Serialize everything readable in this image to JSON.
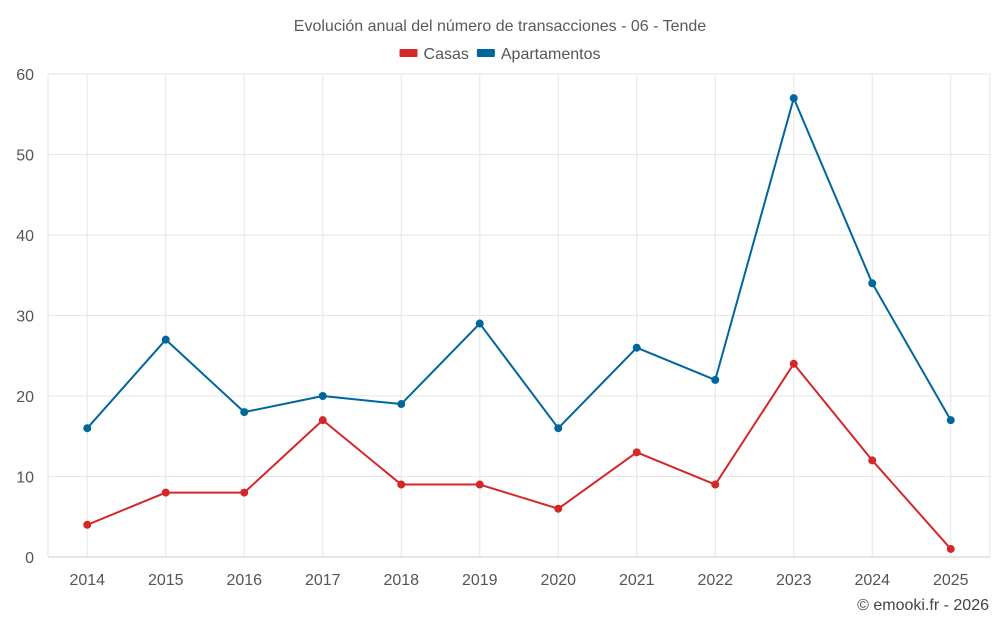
{
  "chart_data": {
    "type": "line",
    "title": "Evolución anual del número de transacciones - 06 - Tende",
    "xlabel": "",
    "ylabel": "",
    "categories": [
      "2014",
      "2015",
      "2016",
      "2017",
      "2018",
      "2019",
      "2020",
      "2021",
      "2022",
      "2023",
      "2024",
      "2025"
    ],
    "ylim": [
      0,
      60
    ],
    "yticks": [
      0,
      10,
      20,
      30,
      40,
      50,
      60
    ],
    "grid": true,
    "legend_position": "top-center",
    "series": [
      {
        "name": "Casas",
        "color": "#d62728",
        "values": [
          4,
          8,
          8,
          17,
          9,
          9,
          6,
          13,
          9,
          24,
          12,
          1
        ]
      },
      {
        "name": "Apartamentos",
        "color": "#00669c",
        "values": [
          16,
          27,
          18,
          20,
          19,
          29,
          16,
          26,
          22,
          57,
          34,
          17
        ]
      }
    ]
  },
  "copyright": "© emooki.fr - 2026"
}
